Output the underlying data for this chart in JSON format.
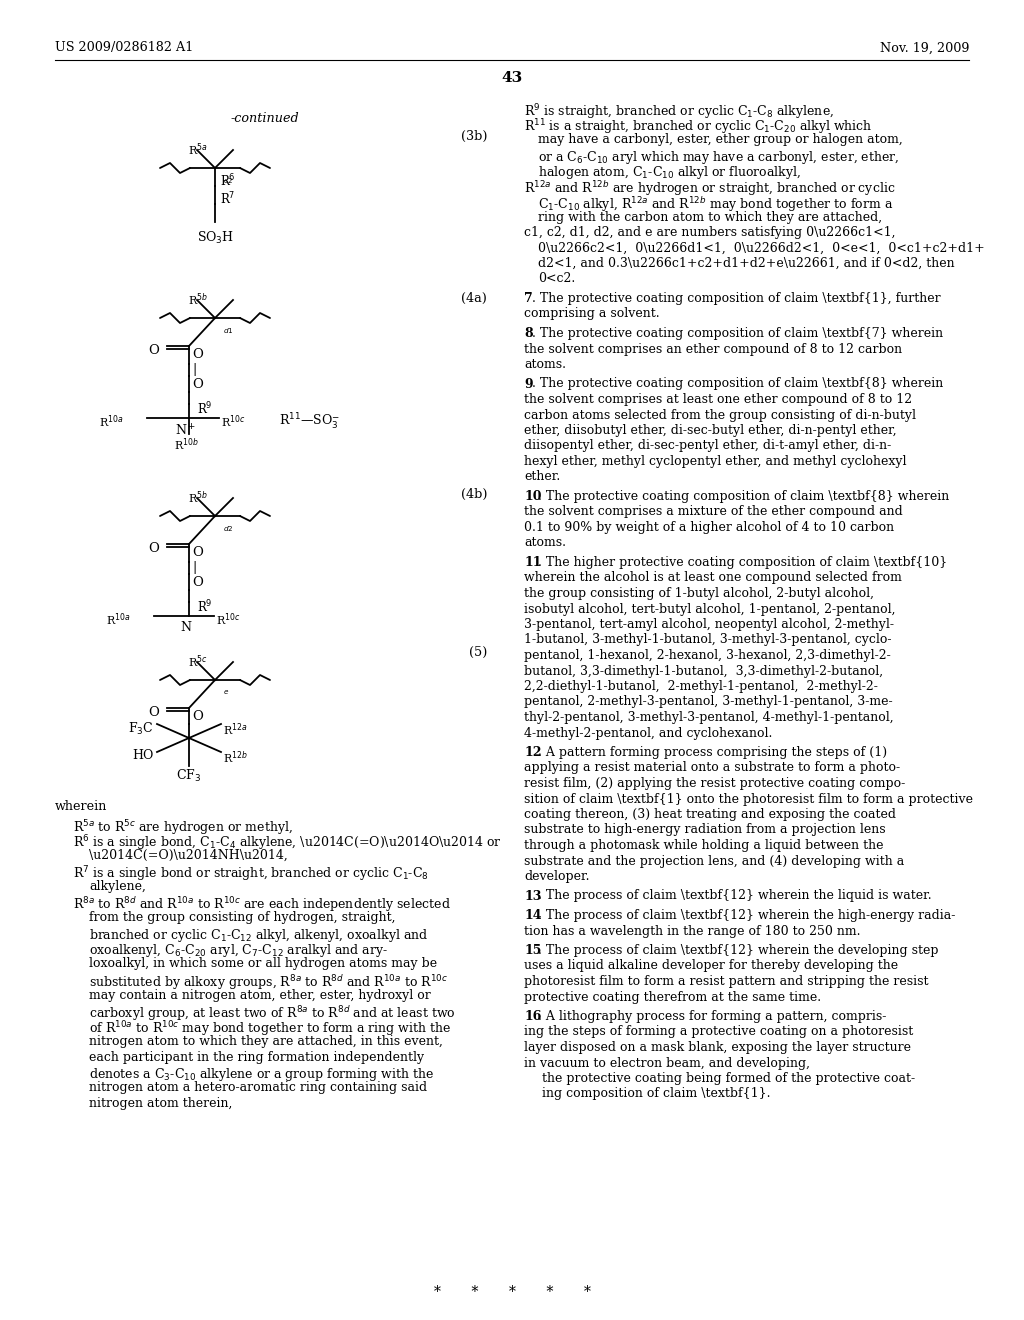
{
  "background_color": "#ffffff",
  "page_header_left": "US 2009/0286182 A1",
  "page_header_right": "Nov. 19, 2009",
  "page_number": "43"
}
